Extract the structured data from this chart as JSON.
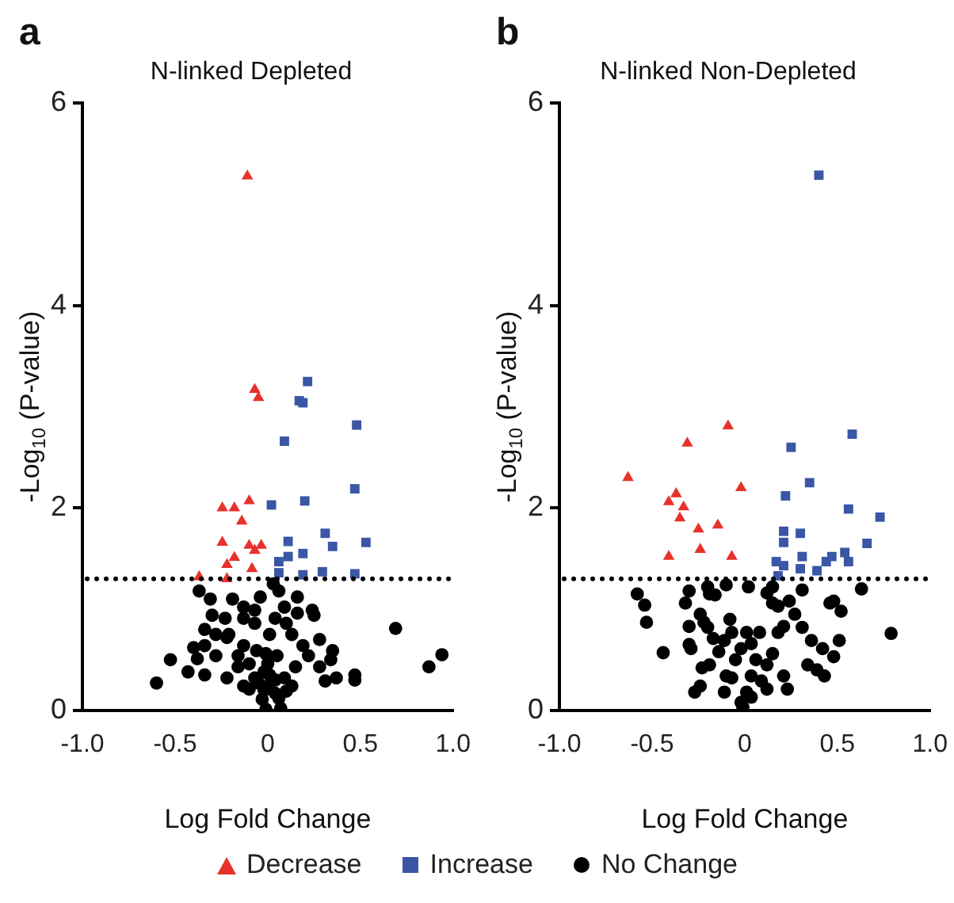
{
  "chart_data": [
    {
      "type": "scatter",
      "title": "N-linked Depleted",
      "xlabel": "Log Fold Change",
      "ylabel": "-Log$_{10}$ (P-value)",
      "annotations": [
        "a"
      ],
      "legend": "bottom",
      "grid": false,
      "xlim": [
        -1,
        1
      ],
      "xticks": [
        {
          "value": -1,
          "label": "-1.0"
        },
        {
          "value": -0.5,
          "label": "-0.5"
        },
        0,
        {
          "value": 0.5,
          "label": "0.5"
        },
        {
          "value": 1,
          "label": "1.0"
        }
      ],
      "ylim": [
        0,
        6
      ],
      "yticks": [
        0,
        2,
        4,
        6
      ],
      "ref_lines": [
        {
          "axis": "y",
          "value": 1.3,
          "line_style": "dotted",
          "color": "#000000"
        }
      ],
      "series": [
        {
          "name": "Decrease",
          "color": "#e8312a",
          "marker": "triangle",
          "x": [
            -0.11,
            -0.07,
            -0.05,
            -0.245,
            -0.18,
            -0.1,
            -0.14,
            -0.245,
            -0.1,
            -0.035,
            -0.07,
            -0.18,
            -0.22,
            -0.085,
            -0.37,
            -0.22
          ],
          "values": [
            5.28,
            3.17,
            3.09,
            2.0,
            2.0,
            2.07,
            1.87,
            1.66,
            1.63,
            1.63,
            1.58,
            1.51,
            1.44,
            1.4,
            1.32,
            1.3
          ]
        },
        {
          "name": "Increase",
          "color": "#3a56a5",
          "marker": "square",
          "x": [
            0.215,
            0.17,
            0.19,
            0.48,
            0.09,
            0.47,
            0.02,
            0.2,
            0.31,
            0.11,
            0.35,
            0.53,
            0.19,
            0.11,
            0.06,
            0.06,
            0.19,
            0.295,
            0.47
          ],
          "values": [
            3.25,
            3.06,
            3.04,
            2.82,
            2.66,
            2.19,
            2.03,
            2.07,
            1.75,
            1.67,
            1.62,
            1.66,
            1.55,
            1.52,
            1.47,
            1.36,
            1.34,
            1.37,
            1.35
          ]
        },
        {
          "name": "No Change",
          "color": "#000000",
          "marker": "circle",
          "x": [
            0.69,
            0.94,
            0.87,
            -0.6,
            -0.525,
            -0.43,
            -0.4,
            -0.34,
            0.47,
            0.47,
            0.37,
            0.35,
            0.34,
            0.25,
            0.24,
            0.16,
            0.06,
            0.03,
            -0.37,
            -0.31,
            -0.19,
            -0.13,
            -0.04,
            -0.3,
            -0.23,
            -0.34,
            -0.28,
            -0.21,
            -0.13,
            -0.16,
            -0.22,
            -0.34,
            -0.07,
            0.01,
            0.04,
            0.1,
            0.13,
            0.19,
            0.28,
            0.16,
            0.09,
            0.22,
            0.15,
            0.09,
            -0.07,
            -0.1,
            0.1,
            -0.01,
            -0.03,
            0.04,
            -0.13,
            0.13,
            0.0,
            -0.1,
            0.0,
            0.05,
            -0.01,
            -0.06,
            -0.16,
            0.01,
            -0.02,
            0.04,
            -0.13,
            -0.07,
            -0.22,
            -0.38,
            0.28,
            0.31,
            -0.28,
            -0.02,
            0.06,
            0.07,
            -0.05
          ],
          "values": [
            0.81,
            0.55,
            0.43,
            0.27,
            0.5,
            0.38,
            0.62,
            0.8,
            0.35,
            0.3,
            0.32,
            0.59,
            0.5,
            0.94,
            0.99,
            1.12,
            1.18,
            1.25,
            1.18,
            1.1,
            1.1,
            1.02,
            1.12,
            0.94,
            0.91,
            0.64,
            0.54,
            0.75,
            0.64,
            0.43,
            0.32,
            0.35,
            0.86,
            0.75,
            0.91,
            0.86,
            0.75,
            0.64,
            0.7,
            0.96,
            1.02,
            0.54,
            0.43,
            0.32,
            0.32,
            0.21,
            0.19,
            0.01,
            0.11,
            0.17,
            0.24,
            0.24,
            0.24,
            0.46,
            0.46,
            0.54,
            0.56,
            0.59,
            0.54,
            0.35,
            0.38,
            0.3,
            0.91,
            0.99,
            0.72,
            0.51,
            0.43,
            0.29,
            0.75,
            0.2,
            0.12,
            0.02,
            0.27
          ]
        }
      ]
    },
    {
      "type": "scatter",
      "title": "N-linked Non-Depleted",
      "xlabel": "Log Fold Change",
      "ylabel": "-Log$_{10}$ (P-value)",
      "annotations": [
        "b"
      ],
      "grid": false,
      "xlim": [
        -1,
        1
      ],
      "xticks": [
        {
          "value": -1,
          "label": "-1.0"
        },
        {
          "value": -0.5,
          "label": "-0.5"
        },
        0,
        {
          "value": 0.5,
          "label": "0.5"
        },
        {
          "value": 1,
          "label": "1.0"
        }
      ],
      "ylim": [
        0,
        6
      ],
      "yticks": [
        0,
        2,
        4,
        6
      ],
      "ref_lines": [
        {
          "axis": "y",
          "value": 1.3,
          "line_style": "dotted",
          "color": "#000000"
        }
      ],
      "series": [
        {
          "color": "#e8312a",
          "marker": "triangle",
          "x": [
            -0.63,
            -0.31,
            -0.09,
            -0.02,
            -0.37,
            -0.41,
            -0.33,
            -0.35,
            -0.25,
            -0.145,
            -0.41,
            -0.24,
            -0.07
          ],
          "values": [
            2.3,
            2.64,
            2.81,
            2.2,
            2.14,
            2.06,
            2.01,
            1.9,
            1.79,
            1.83,
            1.52,
            1.59,
            1.52
          ]
        },
        {
          "color": "#3a56a5",
          "marker": "square",
          "x": [
            0.4,
            0.25,
            0.58,
            0.35,
            0.22,
            0.56,
            0.73,
            0.21,
            0.3,
            0.21,
            0.66,
            0.31,
            0.54,
            0.47,
            0.56,
            0.44,
            0.17,
            0.21,
            0.39,
            0.3,
            0.18
          ],
          "values": [
            5.29,
            2.6,
            2.73,
            2.25,
            2.12,
            1.99,
            1.91,
            1.77,
            1.75,
            1.66,
            1.65,
            1.52,
            1.56,
            1.52,
            1.47,
            1.47,
            1.47,
            1.43,
            1.38,
            1.4,
            1.33
          ]
        },
        {
          "color": "#000000",
          "marker": "circle",
          "x": [
            -0.58,
            -0.54,
            -0.53,
            -0.44,
            -0.3,
            -0.32,
            -0.3,
            -0.3,
            -0.29,
            -0.24,
            -0.22,
            -0.2,
            -0.19,
            -0.16,
            -0.2,
            -0.1,
            -0.08,
            -0.07,
            -0.11,
            -0.14,
            -0.23,
            -0.24,
            -0.27,
            -0.11,
            -0.07,
            -0.05,
            -0.02,
            0.01,
            0.035,
            0.06,
            0.035,
            0.01,
            -0.02,
            -0.01,
            0.035,
            0.09,
            0.12,
            0.15,
            0.18,
            0.18,
            0.15,
            0.12,
            0.15,
            0.24,
            0.27,
            0.31,
            0.31,
            0.36,
            0.34,
            0.39,
            0.43,
            0.42,
            0.48,
            0.46,
            0.48,
            0.52,
            0.51,
            0.63,
            0.79,
            0.02,
            0.21,
            0.23,
            0.12,
            0.08,
            -0.1,
            -0.19,
            -0.17,
            0.21
          ],
          "values": [
            1.15,
            1.04,
            0.87,
            0.57,
            1.18,
            1.06,
            0.83,
            0.65,
            0.61,
            0.95,
            0.87,
            0.82,
            1.15,
            1.14,
            1.22,
            1.24,
            0.9,
            0.77,
            0.69,
            0.58,
            0.42,
            0.24,
            0.18,
            0.18,
            0.32,
            0.5,
            0.61,
            0.77,
            0.66,
            0.5,
            0.34,
            0.18,
            0.08,
            0.03,
            0.13,
            0.29,
            0.45,
            0.56,
            0.77,
            1.03,
            1.06,
            1.16,
            1.22,
            1.08,
            0.95,
            1.19,
            0.82,
            0.69,
            0.45,
            0.4,
            0.34,
            0.61,
            0.53,
            1.06,
            1.08,
            0.98,
            0.69,
            1.2,
            0.76,
            1.22,
            0.34,
            0.21,
            0.21,
            0.77,
            0.34,
            0.45,
            0.71,
            0.83
          ]
        }
      ]
    }
  ]
}
